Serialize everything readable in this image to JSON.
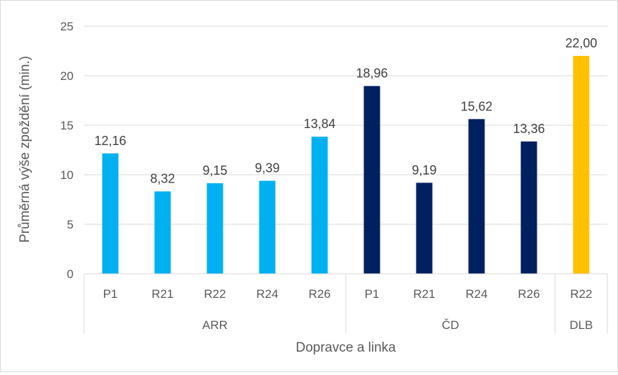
{
  "chart_data": {
    "type": "bar",
    "title": "",
    "xlabel": "Dopravce a linka",
    "ylabel": "Průměrná výše zpoždění (min.)",
    "ylim": [
      0,
      25
    ],
    "yticks": [
      0,
      5,
      10,
      15,
      20,
      25
    ],
    "grid": true,
    "legend": "none",
    "groups": [
      {
        "label": "ARR",
        "color": "#00B0F0",
        "categories": [
          "P1",
          "R21",
          "R22",
          "R24",
          "R26"
        ],
        "values": [
          12.16,
          8.32,
          9.15,
          9.39,
          13.84
        ],
        "data_labels": [
          "12,16",
          "8,32",
          "9,15",
          "9,39",
          "13,84"
        ]
      },
      {
        "label": "ČD",
        "color": "#002060",
        "categories": [
          "P1",
          "R21",
          "R24",
          "R26"
        ],
        "values": [
          18.96,
          9.19,
          15.62,
          13.36
        ],
        "data_labels": [
          "18,96",
          "9,19",
          "15,62",
          "13,36"
        ]
      },
      {
        "label": "DLB",
        "color": "#FFC000",
        "categories": [
          "R22"
        ],
        "values": [
          22.0
        ],
        "data_labels": [
          "22,00"
        ]
      }
    ]
  }
}
